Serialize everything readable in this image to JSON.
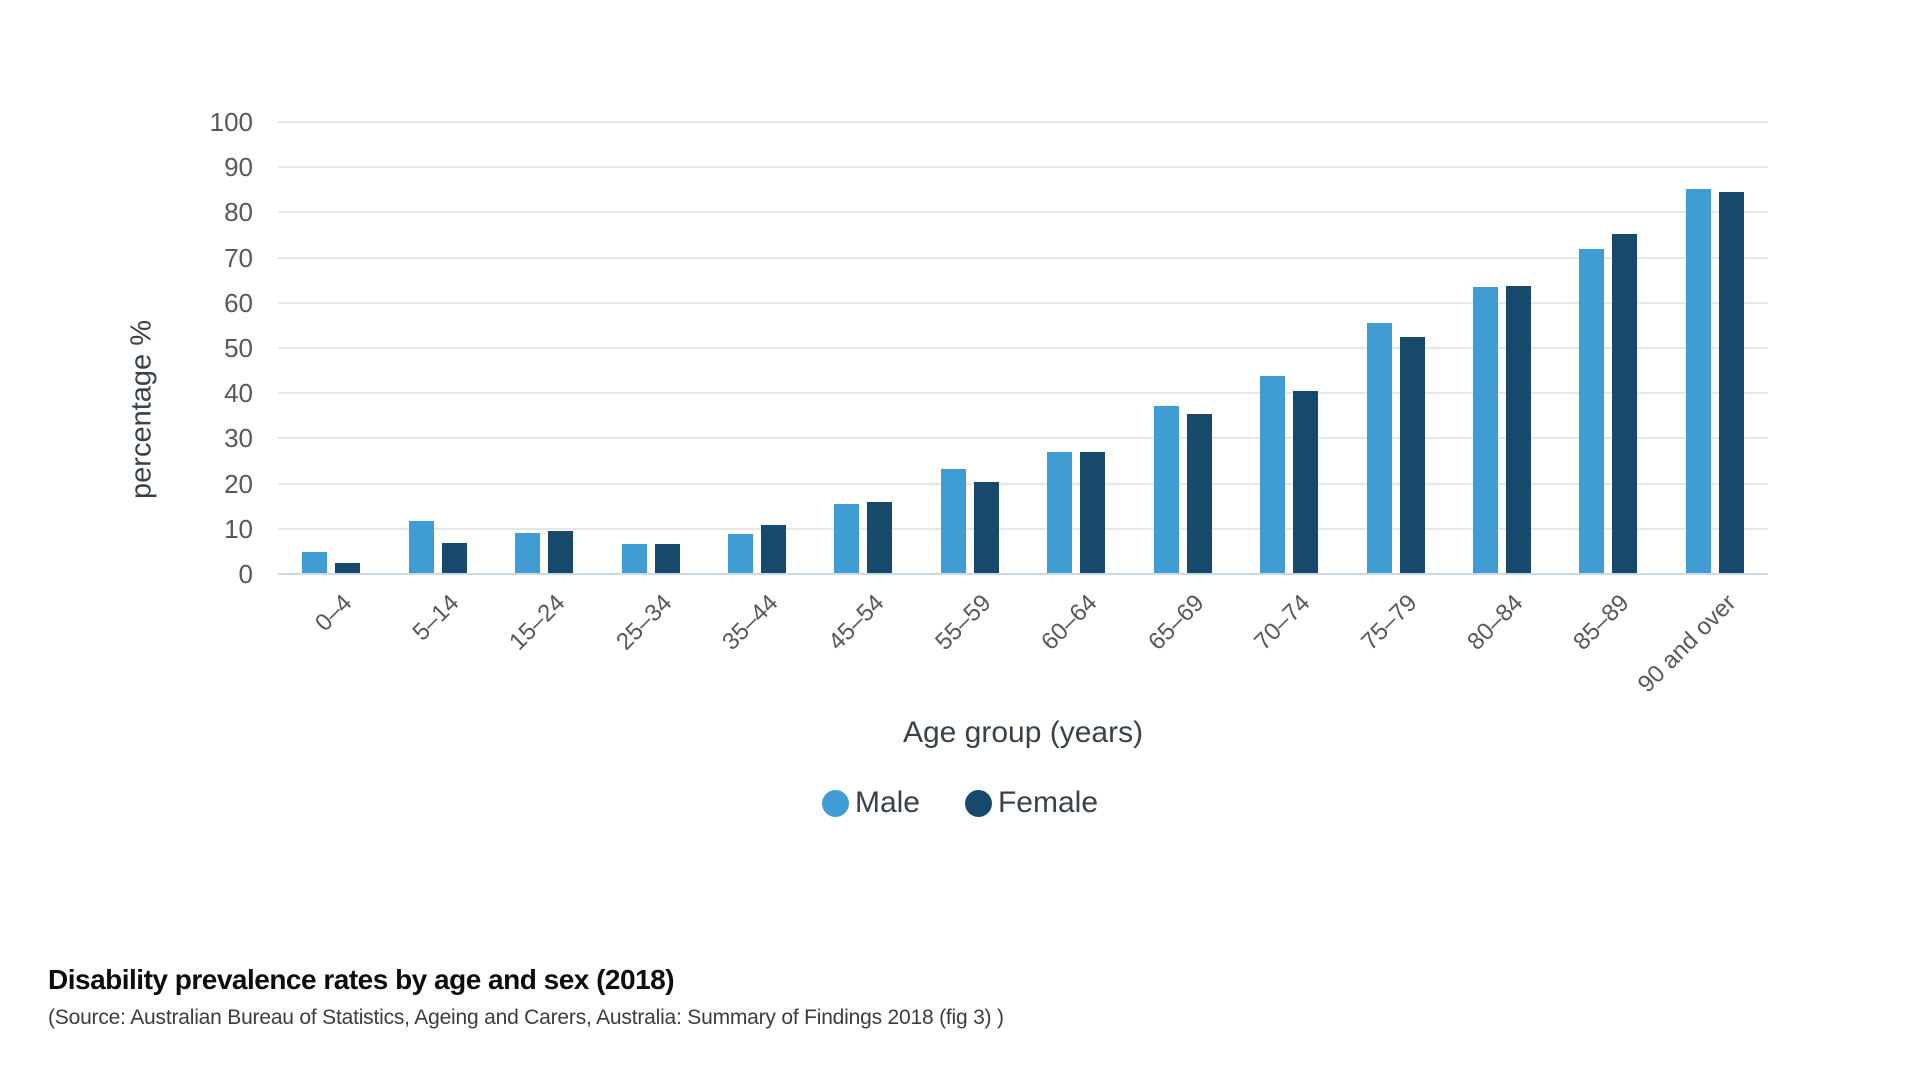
{
  "chart_data": {
    "type": "bar",
    "categories": [
      "0–4",
      "5–14",
      "15–24",
      "25–34",
      "35–44",
      "45–54",
      "55–59",
      "60–64",
      "65–69",
      "70–74",
      "75–79",
      "80–84",
      "85–89",
      "90 and over"
    ],
    "series": [
      {
        "name": "Male",
        "color": "#3f9dd4",
        "values": [
          4.6,
          11.6,
          8.8,
          6.5,
          8.6,
          15.3,
          23.0,
          26.8,
          36.9,
          43.6,
          55.3,
          63.2,
          71.6,
          85.0
        ]
      },
      {
        "name": "Female",
        "color": "#17496c",
        "values": [
          2.3,
          6.6,
          9.3,
          6.5,
          10.6,
          15.8,
          20.1,
          26.8,
          35.1,
          40.2,
          52.2,
          63.5,
          75.0,
          84.3
        ]
      }
    ],
    "xlabel": "Age group (years)",
    "ylabel": "percentage %",
    "ylim": [
      0,
      100
    ],
    "yticks": [
      0,
      10,
      20,
      30,
      40,
      50,
      60,
      70,
      80,
      90,
      100
    ],
    "grid": true,
    "legend_position": "bottom",
    "baseline_color": "#c8d9e8",
    "gridline_color": "#e7e7e7"
  },
  "caption": {
    "title": "Disability prevalence rates by age and sex (2018)",
    "source": "(Source: Australian Bureau of Statistics, Ageing and Carers, Australia: Summary of Findings 2018 (fig 3) )"
  }
}
